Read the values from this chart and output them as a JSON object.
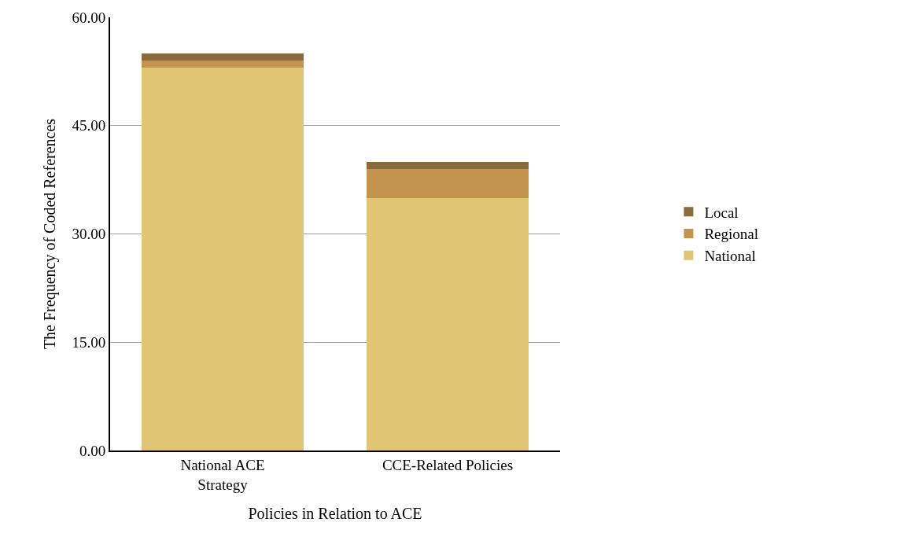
{
  "chart_data": {
    "type": "bar",
    "stacked": true,
    "xlabel": "Policies in Relation to ACE",
    "ylabel": "The Frequency of Coded References",
    "categories": [
      "National ACE Strategy",
      "CCE-Related Policies"
    ],
    "series": [
      {
        "name": "National",
        "color": "#e0c674",
        "values": [
          53,
          35
        ]
      },
      {
        "name": "Regional",
        "color": "#c4944f",
        "values": [
          1,
          4
        ]
      },
      {
        "name": "Local",
        "color": "#8b6a3e",
        "values": [
          1,
          1
        ]
      }
    ],
    "ylim": [
      0,
      60
    ],
    "yticks": [
      {
        "value": 0,
        "label": "0.00"
      },
      {
        "value": 15,
        "label": "15.00"
      },
      {
        "value": 30,
        "label": "30.00"
      },
      {
        "value": 45,
        "label": "45.00"
      },
      {
        "value": 60,
        "label": "60.00"
      }
    ],
    "grid": "y",
    "legend": "right"
  }
}
